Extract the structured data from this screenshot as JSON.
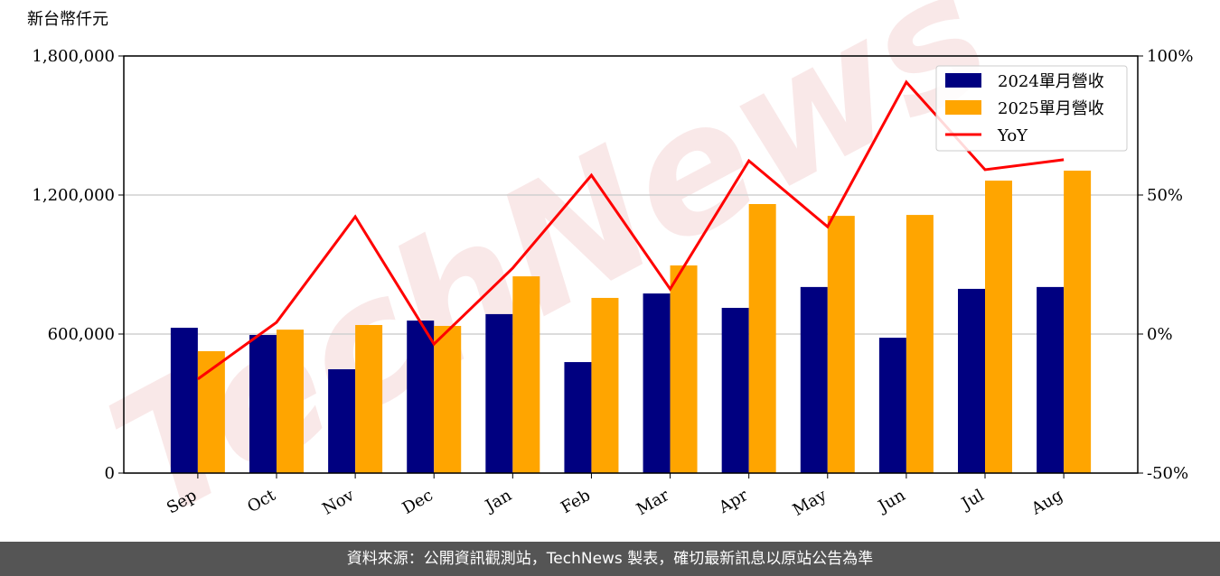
{
  "chart_data": {
    "type": "bar-line",
    "y_label": "新台幣仟元",
    "watermark": "TechNews",
    "categories": [
      "Sep",
      "Oct",
      "Nov",
      "Dec",
      "Jan",
      "Feb",
      "Mar",
      "Apr",
      "May",
      "Jun",
      "Jul",
      "Aug"
    ],
    "series": [
      {
        "name": "2024單月營收",
        "color": "#000080",
        "type": "bar",
        "values": [
          627000,
          596000,
          448000,
          658000,
          686000,
          479000,
          775000,
          713000,
          803000,
          584000,
          795000,
          803000
        ]
      },
      {
        "name": "2025單月營收",
        "color": "#ffa500",
        "type": "bar",
        "values": [
          526000,
          619000,
          639000,
          635000,
          849000,
          756000,
          896000,
          1161000,
          1110000,
          1114000,
          1262000,
          1305000
        ]
      },
      {
        "name": "YoY",
        "color": "#ff0000",
        "type": "line",
        "axis": "y2",
        "values": [
          -16.2,
          4.2,
          42.2,
          -3.6,
          23.7,
          57.1,
          16.2,
          62.3,
          38.6,
          90.6,
          59.1,
          62.7
        ]
      }
    ],
    "ylim": [
      0,
      1800000
    ],
    "yticks": [
      {
        "value": 0,
        "label": "0"
      },
      {
        "value": 600000,
        "label": "600,000"
      },
      {
        "value": 1200000,
        "label": "1,200,000"
      },
      {
        "value": 1800000,
        "label": "1,800,000"
      }
    ],
    "y2lim": [
      -50,
      100
    ],
    "y2ticks": [
      {
        "value": -50,
        "label": "-50%"
      },
      {
        "value": 0,
        "label": "0%"
      },
      {
        "value": 50,
        "label": "50%"
      },
      {
        "value": 100,
        "label": "100%"
      }
    ],
    "grid": true,
    "legend": "upper-right"
  },
  "footer": "資料來源：公開資訊觀測站，TechNews 製表，確切最新訊息以原站公告為準"
}
